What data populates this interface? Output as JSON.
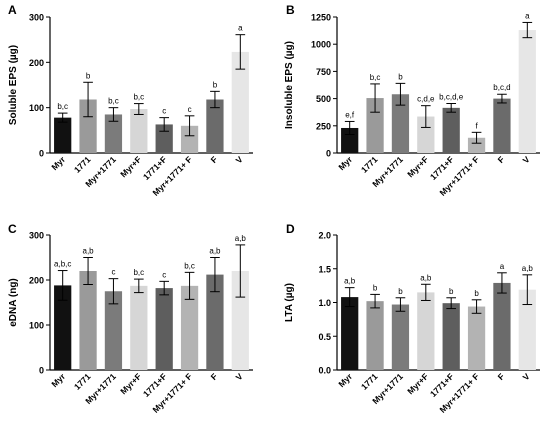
{
  "chart_data": [
    {
      "panel": "A",
      "type": "bar",
      "ylabel": "Soluble EPS (µg)",
      "ylim": [
        0,
        300
      ],
      "yticks": [
        "0",
        "100",
        "200",
        "300"
      ],
      "tick_values": [
        0,
        100,
        200,
        300
      ],
      "categories": [
        "Myr",
        "1771",
        "Myr+1771",
        "Myr+F",
        "1771+F",
        "Myr+1771+ F",
        "F",
        "V"
      ],
      "values": [
        78,
        118,
        85,
        97,
        63,
        60,
        118,
        223
      ],
      "errors": [
        10,
        38,
        15,
        12,
        15,
        22,
        18,
        38
      ],
      "letters": [
        "b,c",
        "b",
        "b,c",
        "b,c",
        "c",
        "c",
        "b",
        "a"
      ],
      "colors": [
        "#111111",
        "#9a9a9a",
        "#7b7b7b",
        "#d6d6d6",
        "#5e5e5e",
        "#b3b3b3",
        "#6b6b6b",
        "#e6e6e6"
      ]
    },
    {
      "panel": "B",
      "type": "bar",
      "ylabel": "Insoluble EPS (µg)",
      "ylim": [
        0,
        1250
      ],
      "yticks": [
        "0",
        "250",
        "500",
        "750",
        "1000",
        "1250"
      ],
      "tick_values": [
        0,
        250,
        500,
        750,
        1000,
        1250
      ],
      "categories": [
        "Myr",
        "1771",
        "Myr+1771",
        "Myr+F",
        "1771+F",
        "Myr+1771+ F",
        "F",
        "V"
      ],
      "values": [
        230,
        505,
        540,
        335,
        415,
        140,
        500,
        1130
      ],
      "errors": [
        60,
        130,
        100,
        100,
        40,
        50,
        40,
        70
      ],
      "letters": [
        "e,f",
        "b,c",
        "b",
        "c,d,e",
        "b,c,d,e",
        "f",
        "b,c,d",
        "a"
      ],
      "colors": [
        "#111111",
        "#9a9a9a",
        "#7b7b7b",
        "#d6d6d6",
        "#5e5e5e",
        "#b3b3b3",
        "#6b6b6b",
        "#e6e6e6"
      ]
    },
    {
      "panel": "C",
      "type": "bar",
      "ylabel": "eDNA (ng)",
      "ylim": [
        0,
        300
      ],
      "yticks": [
        "0",
        "100",
        "200",
        "300"
      ],
      "tick_values": [
        0,
        100,
        200,
        300
      ],
      "categories": [
        "Myr",
        "1771",
        "Myr+1771",
        "Myr+F",
        "1771+F",
        "Myr+1771+ F",
        "F",
        "V"
      ],
      "values": [
        188,
        220,
        175,
        187,
        182,
        187,
        212,
        220
      ],
      "errors": [
        33,
        30,
        28,
        15,
        15,
        30,
        38,
        58
      ],
      "letters": [
        "a,b,c",
        "a,b",
        "c",
        "b,c",
        "c",
        "b,c",
        "a,b",
        "a,b"
      ],
      "colors": [
        "#111111",
        "#9a9a9a",
        "#7b7b7b",
        "#d6d6d6",
        "#5e5e5e",
        "#b3b3b3",
        "#6b6b6b",
        "#e6e6e6"
      ]
    },
    {
      "panel": "D",
      "type": "bar",
      "ylabel": "LTA (µg)",
      "ylim": [
        0,
        2.0
      ],
      "yticks": [
        "0.0",
        "0.5",
        "1.0",
        "1.5",
        "2.0"
      ],
      "tick_values": [
        0,
        0.5,
        1.0,
        1.5,
        2.0
      ],
      "categories": [
        "Myr",
        "1771",
        "Myr+1771",
        "Myr+F",
        "1771+F",
        "Myr+1771+ F",
        "F",
        "V"
      ],
      "values": [
        1.08,
        1.02,
        0.97,
        1.15,
        0.99,
        0.94,
        1.29,
        1.19
      ],
      "errors": [
        0.14,
        0.1,
        0.1,
        0.12,
        0.08,
        0.1,
        0.15,
        0.22
      ],
      "letters": [
        "a,b",
        "b",
        "b",
        "a,b",
        "b",
        "b",
        "a",
        "a,b"
      ],
      "colors": [
        "#111111",
        "#9a9a9a",
        "#7b7b7b",
        "#d6d6d6",
        "#5e5e5e",
        "#b3b3b3",
        "#6b6b6b",
        "#e6e6e6"
      ]
    }
  ]
}
